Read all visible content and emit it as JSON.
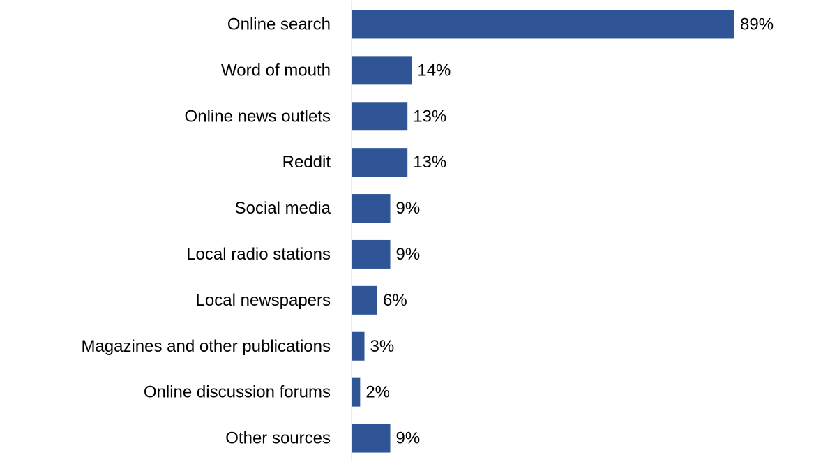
{
  "chart_data": {
    "type": "bar",
    "orientation": "horizontal",
    "title": "",
    "xlabel": "",
    "ylabel": "",
    "categories": [
      "Online search",
      "Word of mouth",
      "Online news outlets",
      "Reddit",
      "Social media",
      "Local radio stations",
      "Local newspapers",
      "Magazines and other publications",
      "Online discussion forums",
      "Other sources"
    ],
    "values": [
      89,
      14,
      13,
      13,
      9,
      9,
      6,
      3,
      2,
      9
    ],
    "value_labels": [
      "89%",
      "14%",
      "13%",
      "13%",
      "9%",
      "9%",
      "6%",
      "3%",
      "2%",
      "9%"
    ],
    "unit": "%",
    "xlim": [
      0,
      89
    ],
    "grid": false,
    "legend": "none",
    "colors": {
      "bar": "#2f5597",
      "axis": "#d9d9d9",
      "text": "#000000"
    }
  }
}
